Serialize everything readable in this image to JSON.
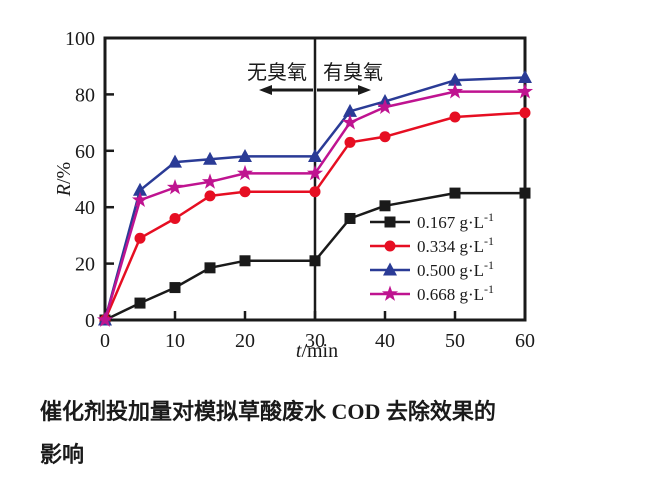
{
  "figure": {
    "caption_line1": "催化剂投加量对模拟草酸废水 COD 去除效果的",
    "caption_line2": "影响"
  },
  "chart_data": {
    "type": "line",
    "title": "",
    "xlabel": "t/min",
    "ylabel": "R/%",
    "xlim": [
      0,
      60
    ],
    "ylim": [
      0,
      100
    ],
    "x_ticks": [
      0,
      10,
      20,
      30,
      40,
      50,
      60
    ],
    "y_ticks": [
      0,
      20,
      40,
      60,
      80,
      100
    ],
    "grid": false,
    "legend_position": "inside-lower-right",
    "x": [
      0,
      5,
      10,
      15,
      20,
      30,
      35,
      40,
      50,
      60
    ],
    "series": [
      {
        "name": "0.167 g·L⁻¹",
        "marker": "square",
        "color": "#1a1a1a",
        "values": [
          0,
          6,
          11.5,
          18.5,
          21,
          21,
          36,
          40.5,
          45,
          45
        ]
      },
      {
        "name": "0.334 g·L⁻¹",
        "marker": "circle",
        "color": "#e60e22",
        "values": [
          0,
          29,
          36,
          44,
          45.5,
          45.5,
          63,
          65,
          72,
          73.5
        ]
      },
      {
        "name": "0.500 g·L⁻¹",
        "marker": "triangle",
        "color": "#2a3b96",
        "values": [
          0,
          46,
          56,
          57,
          58,
          58,
          74,
          77.5,
          85,
          86
        ]
      },
      {
        "name": "0.668 g·L⁻¹",
        "marker": "star",
        "color": "#bf1390",
        "values": [
          0,
          42.5,
          47,
          49,
          52,
          52,
          70,
          75.5,
          81,
          81
        ]
      }
    ],
    "annotations": {
      "divider_x": 30,
      "left_label": "无臭氧",
      "right_label": "有臭氧"
    },
    "axis_color": "#1a1a1a"
  }
}
